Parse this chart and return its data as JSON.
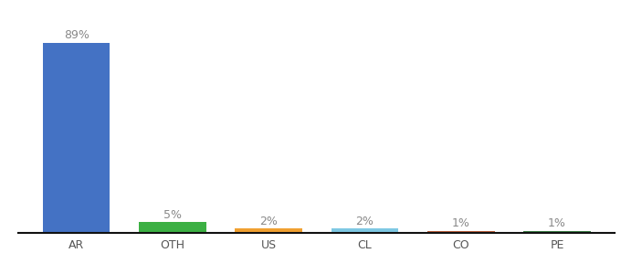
{
  "categories": [
    "AR",
    "OTH",
    "US",
    "CL",
    "CO",
    "PE"
  ],
  "values": [
    89,
    5,
    2,
    2,
    1,
    1
  ],
  "bar_colors": [
    "#4472c4",
    "#3cb043",
    "#f0a030",
    "#7ec8e3",
    "#b85c38",
    "#3a7d44"
  ],
  "labels": [
    "89%",
    "5%",
    "2%",
    "2%",
    "1%",
    "1%"
  ],
  "ylim": [
    0,
    100
  ],
  "background_color": "#ffffff",
  "label_fontsize": 9,
  "tick_fontsize": 9,
  "bar_width": 0.7,
  "label_color": "#888888",
  "tick_color": "#555555"
}
